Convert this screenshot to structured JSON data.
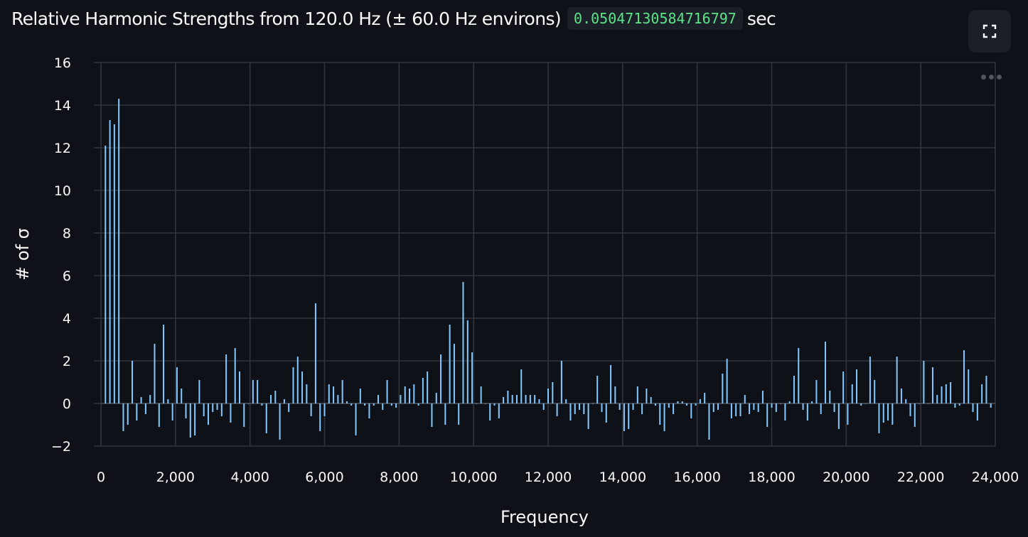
{
  "header": {
    "title": "Relative Harmonic Strengths from 120.0 Hz (± 60.0 Hz environs)",
    "duration_value": "0.05047130584716797",
    "duration_unit": "sec"
  },
  "toolbar": {
    "fullscreen_icon": "fullscreen-icon",
    "more_icon": "more-options-icon"
  },
  "colors": {
    "background": "#0e1117",
    "bar": "#83c9ff",
    "grid": "#31333f",
    "text": "#fafafa",
    "code_text": "#5ce488"
  },
  "chart_data": {
    "type": "bar",
    "title": "",
    "xlabel": "Frequency",
    "ylabel": "# of σ",
    "xlim": [
      0,
      24000
    ],
    "ylim": [
      -2,
      16
    ],
    "x_ticks": [
      0,
      2000,
      4000,
      6000,
      8000,
      10000,
      12000,
      14000,
      16000,
      18000,
      20000,
      22000,
      24000
    ],
    "x_tick_labels": [
      "0",
      "2,000",
      "4,000",
      "6,000",
      "8,000",
      "10,000",
      "12,000",
      "14,000",
      "16,000",
      "18,000",
      "20,000",
      "22,000",
      "24,000"
    ],
    "y_ticks": [
      -2,
      0,
      2,
      4,
      6,
      8,
      10,
      12,
      14,
      16
    ],
    "y_tick_labels": [
      "−2",
      "0",
      "2",
      "4",
      "6",
      "8",
      "10",
      "12",
      "14",
      "16"
    ],
    "grid": true,
    "legend": "none",
    "x_step_hz": 120,
    "x_start_hz": 120,
    "values": [
      12.1,
      13.3,
      13.1,
      14.3,
      -1.3,
      -1.0,
      2.0,
      -0.8,
      0.3,
      -0.5,
      0.4,
      2.8,
      -1.1,
      3.7,
      0.2,
      -0.8,
      1.7,
      0.7,
      -0.7,
      -1.6,
      -1.5,
      1.1,
      -0.6,
      -1.0,
      -0.4,
      -0.3,
      -0.6,
      2.3,
      -0.9,
      2.6,
      1.5,
      -1.1,
      0.0,
      1.1,
      1.1,
      -0.1,
      -1.4,
      0.4,
      0.6,
      -1.7,
      0.2,
      -0.4,
      1.7,
      2.2,
      1.5,
      0.9,
      -0.6,
      4.7,
      -1.3,
      -0.6,
      0.9,
      0.8,
      0.4,
      1.1,
      0.1,
      -0.1,
      -1.5,
      0.7,
      -0.1,
      -0.7,
      -0.1,
      0.4,
      -0.3,
      1.1,
      -0.1,
      -0.2,
      0.4,
      0.8,
      0.7,
      0.9,
      -0.1,
      1.2,
      1.5,
      -1.1,
      0.5,
      2.3,
      -1.0,
      3.7,
      2.8,
      -1.0,
      5.7,
      3.9,
      2.4,
      0.0,
      0.8,
      0.0,
      -0.8,
      -0.1,
      -0.7,
      0.3,
      0.6,
      0.4,
      0.4,
      1.6,
      0.4,
      0.4,
      0.4,
      0.2,
      -0.3,
      0.7,
      1.0,
      -0.6,
      2.0,
      0.2,
      -0.8,
      -0.5,
      -0.3,
      -0.5,
      -1.2,
      0.0,
      1.3,
      -0.4,
      -0.9,
      1.8,
      0.8,
      -0.3,
      -1.3,
      -1.2,
      -0.3,
      0.8,
      -0.5,
      0.7,
      0.3,
      -0.1,
      -1.0,
      -1.3,
      -0.2,
      -0.5,
      0.1,
      0.1,
      -0.1,
      -0.7,
      -0.1,
      0.2,
      0.5,
      -1.7,
      -0.4,
      -0.3,
      1.4,
      2.1,
      -0.7,
      -0.6,
      -0.6,
      0.4,
      -0.5,
      -0.3,
      -0.4,
      0.6,
      -1.1,
      -0.2,
      -0.4,
      0.0,
      -0.8,
      0.1,
      1.3,
      2.6,
      -0.3,
      -0.8,
      0.1,
      1.1,
      -0.5,
      2.9,
      0.6,
      -0.4,
      -1.2,
      1.5,
      -1.0,
      0.9,
      1.6,
      -0.1,
      0.0,
      2.2,
      1.1,
      -1.4,
      -0.9,
      -0.8,
      -1.0,
      2.2,
      0.7,
      0.2,
      -0.6,
      -1.1,
      0.0,
      2.0,
      0.0,
      1.7,
      0.4,
      0.8,
      0.9,
      1.0,
      -0.2,
      -0.1,
      2.5,
      1.6,
      -0.4,
      -0.8,
      0.9,
      1.3,
      -0.2
    ]
  }
}
